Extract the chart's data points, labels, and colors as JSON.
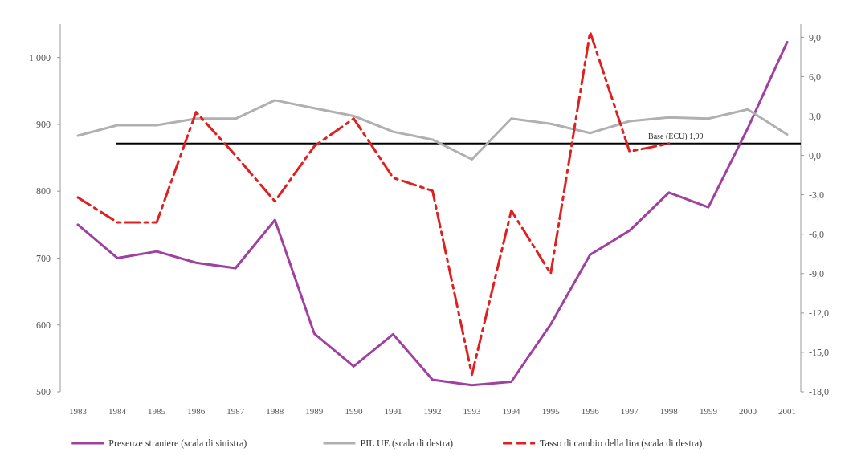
{
  "chart_data": {
    "type": "line",
    "categories": [
      "1983",
      "1984",
      "1985",
      "1986",
      "1987",
      "1988",
      "1989",
      "1990",
      "1991",
      "1992",
      "1993",
      "1994",
      "1995",
      "1996",
      "1997",
      "1998",
      "1999",
      "2000",
      "2001"
    ],
    "series": [
      {
        "name": "Presenze straniere (scala di sinistra)",
        "color": "#a040a0",
        "values": [
          750,
          700,
          710,
          693,
          685,
          757,
          587,
          538,
          586,
          518,
          510,
          515,
          601,
          705,
          741,
          798,
          776,
          894,
          1023
        ]
      },
      {
        "name": "PIL UE (scala di destra)",
        "color": "#b0b0b0",
        "axis": "y2",
        "values": [
          1.5,
          2.3,
          2.3,
          2.8,
          2.8,
          4.2,
          3.6,
          3.0,
          1.8,
          1.2,
          -0.3,
          2.8,
          2.4,
          1.7,
          2.6,
          2.9,
          2.8,
          3.5,
          1.6
        ]
      },
      {
        "name": "Tasso di cambio della lira (scala di destra)",
        "color": "#e02020",
        "axis": "y2",
        "line_style": "dashed",
        "values": [
          -3.2,
          -5.1,
          -5.1,
          3.3,
          0.0,
          -3.5,
          0.7,
          2.8,
          -1.7,
          -2.7,
          -16.7,
          -4.2,
          -9.0,
          9.4,
          0.3,
          0.9,
          null,
          null,
          null
        ]
      }
    ],
    "ylim": [
      500,
      1050
    ],
    "yticks": [
      500,
      600,
      700,
      800,
      900,
      {
        "value": 1000,
        "label": "1.000"
      }
    ],
    "y2lim": [
      -18,
      10
    ],
    "y2ticks": [
      {
        "value": -18,
        "label": "-18,0"
      },
      {
        "value": -15,
        "label": "-15,0"
      },
      {
        "value": -12,
        "label": "-12,0"
      },
      {
        "value": -9,
        "label": "-9,0"
      },
      {
        "value": -6,
        "label": "-6,0"
      },
      {
        "value": -3,
        "label": "-3,0"
      },
      {
        "value": 0,
        "label": "0,0"
      },
      {
        "value": 3,
        "label": "3,0"
      },
      {
        "value": 6,
        "label": "6,0"
      },
      {
        "value": 9,
        "label": "9,0"
      }
    ],
    "ref_lines": [
      {
        "axis": "y2",
        "value": 0.9,
        "label": "Base (ECU) 1,99",
        "color": "#000000"
      }
    ],
    "legend": "bottom",
    "grid": false
  }
}
